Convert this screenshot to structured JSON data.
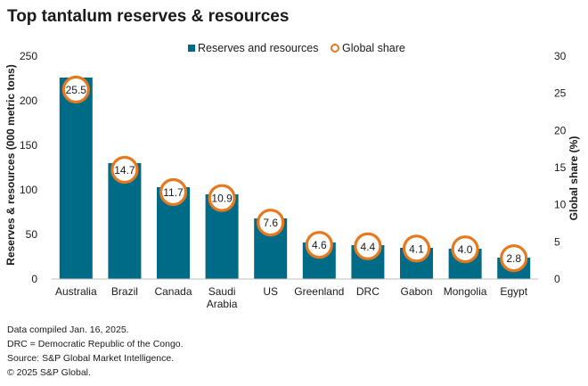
{
  "chart_data": {
    "type": "bar",
    "title": "Top tantalum reserves & resources",
    "categories": [
      "Australia",
      "Brazil",
      "Canada",
      "Saudi Arabia",
      "US",
      "Greenland",
      "DRC",
      "Gabon",
      "Mongolia",
      "Egypt"
    ],
    "series": [
      {
        "name": "Reserves and resources",
        "axis": "left",
        "type": "bar",
        "color": "#006b87",
        "values": [
          226,
          130,
          103,
          95,
          68,
          41,
          38,
          35,
          34,
          24
        ]
      },
      {
        "name": "Global share",
        "axis": "right",
        "type": "marker",
        "color": "#e6781e",
        "values": [
          25.5,
          14.7,
          11.7,
          10.9,
          7.6,
          4.6,
          4.4,
          4.1,
          4.0,
          2.8
        ],
        "labels": [
          "25.5",
          "14.7",
          "11.7",
          "10.9",
          "7.6",
          "4.6",
          "4.4",
          "4.1",
          "4.0",
          "2.8"
        ]
      }
    ],
    "ylabel": "Reserves & resources (000 metric tons)",
    "ylim": [
      0,
      250
    ],
    "yticks": [
      0,
      50,
      100,
      150,
      200,
      250
    ],
    "y2label": "Global share (%)",
    "y2lim": [
      0,
      30
    ],
    "y2ticks": [
      0,
      5,
      10,
      15,
      20,
      25,
      30
    ],
    "legend_position": "top-center",
    "grid": false
  },
  "notes": [
    "Data compiled Jan. 16, 2025.",
    "DRC = Democratic Republic of the Congo.",
    "Source: S&P Global Market Intelligence.",
    "© 2025 S&P Global."
  ]
}
